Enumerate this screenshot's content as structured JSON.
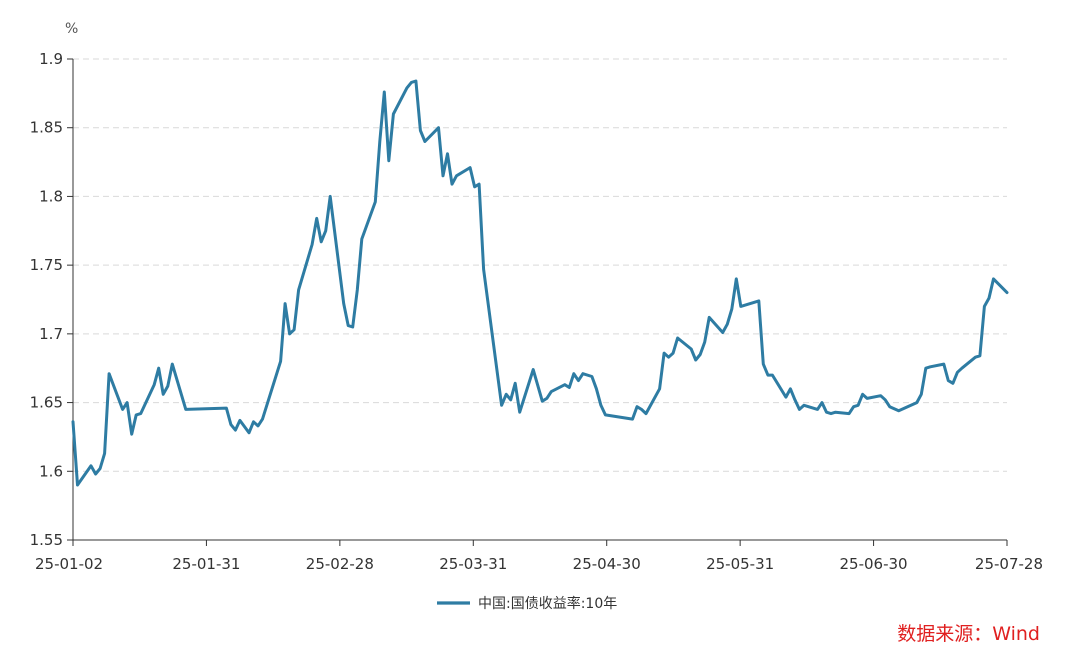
{
  "chart_data": {
    "type": "line",
    "unit": "%",
    "ylim": [
      1.55,
      1.9
    ],
    "y_ticks": [
      "1.55",
      "1.6",
      "1.65",
      "1.7",
      "1.75",
      "1.8",
      "1.85",
      "1.9"
    ],
    "x_tick_labels": [
      "25-01-02",
      "25-01-31",
      "25-02-28",
      "25-03-31",
      "25-04-30",
      "25-05-31",
      "25-06-30",
      "25-07-28"
    ],
    "grid": true,
    "legend_position": "bottom",
    "series": [
      {
        "name": "中国:国债收益率:10年",
        "color": "#2e7ca3",
        "points": [
          [
            "2025-01-02",
            1.636
          ],
          [
            "2025-01-03",
            1.59
          ],
          [
            "2025-01-06",
            1.604
          ],
          [
            "2025-01-07",
            1.598
          ],
          [
            "2025-01-08",
            1.602
          ],
          [
            "2025-01-09",
            1.613
          ],
          [
            "2025-01-10",
            1.671
          ],
          [
            "2025-01-13",
            1.645
          ],
          [
            "2025-01-14",
            1.65
          ],
          [
            "2025-01-15",
            1.627
          ],
          [
            "2025-01-16",
            1.641
          ],
          [
            "2025-01-17",
            1.642
          ],
          [
            "2025-01-20",
            1.663
          ],
          [
            "2025-01-21",
            1.675
          ],
          [
            "2025-01-22",
            1.656
          ],
          [
            "2025-01-23",
            1.662
          ],
          [
            "2025-01-24",
            1.678
          ],
          [
            "2025-01-26",
            1.656
          ],
          [
            "2025-01-27",
            1.645
          ],
          [
            "2025-02-05",
            1.646
          ],
          [
            "2025-02-06",
            1.634
          ],
          [
            "2025-02-07",
            1.63
          ],
          [
            "2025-02-08",
            1.637
          ],
          [
            "2025-02-10",
            1.628
          ],
          [
            "2025-02-11",
            1.636
          ],
          [
            "2025-02-12",
            1.633
          ],
          [
            "2025-02-13",
            1.638
          ],
          [
            "2025-02-17",
            1.68
          ],
          [
            "2025-02-18",
            1.722
          ],
          [
            "2025-02-19",
            1.7
          ],
          [
            "2025-02-20",
            1.703
          ],
          [
            "2025-02-21",
            1.732
          ],
          [
            "2025-02-24",
            1.765
          ],
          [
            "2025-02-25",
            1.784
          ],
          [
            "2025-02-26",
            1.767
          ],
          [
            "2025-02-27",
            1.775
          ],
          [
            "2025-02-28",
            1.8
          ],
          [
            "2025-03-03",
            1.722
          ],
          [
            "2025-03-04",
            1.706
          ],
          [
            "2025-03-05",
            1.705
          ],
          [
            "2025-03-06",
            1.732
          ],
          [
            "2025-03-07",
            1.769
          ],
          [
            "2025-03-10",
            1.796
          ],
          [
            "2025-03-11",
            1.84
          ],
          [
            "2025-03-12",
            1.876
          ],
          [
            "2025-03-13",
            1.826
          ],
          [
            "2025-03-14",
            1.86
          ],
          [
            "2025-03-17",
            1.879
          ],
          [
            "2025-03-18",
            1.883
          ],
          [
            "2025-03-19",
            1.884
          ],
          [
            "2025-03-20",
            1.848
          ],
          [
            "2025-03-21",
            1.84
          ],
          [
            "2025-03-24",
            1.85
          ],
          [
            "2025-03-25",
            1.815
          ],
          [
            "2025-03-26",
            1.831
          ],
          [
            "2025-03-27",
            1.809
          ],
          [
            "2025-03-28",
            1.815
          ],
          [
            "2025-03-31",
            1.821
          ],
          [
            "2025-04-01",
            1.807
          ],
          [
            "2025-04-02",
            1.809
          ],
          [
            "2025-04-03",
            1.747
          ],
          [
            "2025-04-07",
            1.648
          ],
          [
            "2025-04-08",
            1.656
          ],
          [
            "2025-04-09",
            1.652
          ],
          [
            "2025-04-10",
            1.664
          ],
          [
            "2025-04-11",
            1.643
          ],
          [
            "2025-04-14",
            1.674
          ],
          [
            "2025-04-16",
            1.651
          ],
          [
            "2025-04-17",
            1.653
          ],
          [
            "2025-04-18",
            1.658
          ],
          [
            "2025-04-21",
            1.663
          ],
          [
            "2025-04-22",
            1.661
          ],
          [
            "2025-04-23",
            1.671
          ],
          [
            "2025-04-24",
            1.666
          ],
          [
            "2025-04-25",
            1.671
          ],
          [
            "2025-04-27",
            1.669
          ],
          [
            "2025-04-28",
            1.66
          ],
          [
            "2025-04-29",
            1.648
          ],
          [
            "2025-04-30",
            1.641
          ],
          [
            "2025-05-06",
            1.638
          ],
          [
            "2025-05-07",
            1.647
          ],
          [
            "2025-05-08",
            1.645
          ],
          [
            "2025-05-09",
            1.642
          ],
          [
            "2025-05-12",
            1.66
          ],
          [
            "2025-05-13",
            1.686
          ],
          [
            "2025-05-14",
            1.683
          ],
          [
            "2025-05-15",
            1.686
          ],
          [
            "2025-05-16",
            1.697
          ],
          [
            "2025-05-19",
            1.689
          ],
          [
            "2025-05-20",
            1.681
          ],
          [
            "2025-05-21",
            1.685
          ],
          [
            "2025-05-22",
            1.694
          ],
          [
            "2025-05-23",
            1.712
          ],
          [
            "2025-05-26",
            1.701
          ],
          [
            "2025-05-27",
            1.707
          ],
          [
            "2025-05-28",
            1.718
          ],
          [
            "2025-05-29",
            1.74
          ],
          [
            "2025-05-30",
            1.72
          ],
          [
            "2025-06-03",
            1.724
          ],
          [
            "2025-06-04",
            1.678
          ],
          [
            "2025-06-05",
            1.67
          ],
          [
            "2025-06-06",
            1.67
          ],
          [
            "2025-06-09",
            1.654
          ],
          [
            "2025-06-10",
            1.66
          ],
          [
            "2025-06-11",
            1.652
          ],
          [
            "2025-06-12",
            1.645
          ],
          [
            "2025-06-13",
            1.648
          ],
          [
            "2025-06-16",
            1.645
          ],
          [
            "2025-06-17",
            1.65
          ],
          [
            "2025-06-18",
            1.643
          ],
          [
            "2025-06-19",
            1.642
          ],
          [
            "2025-06-20",
            1.643
          ],
          [
            "2025-06-23",
            1.642
          ],
          [
            "2025-06-24",
            1.647
          ],
          [
            "2025-06-25",
            1.648
          ],
          [
            "2025-06-26",
            1.656
          ],
          [
            "2025-06-27",
            1.653
          ],
          [
            "2025-06-30",
            1.655
          ],
          [
            "2025-07-01",
            1.652
          ],
          [
            "2025-07-02",
            1.647
          ],
          [
            "2025-07-04",
            1.644
          ],
          [
            "2025-07-08",
            1.65
          ],
          [
            "2025-07-09",
            1.656
          ],
          [
            "2025-07-10",
            1.675
          ],
          [
            "2025-07-11",
            1.676
          ],
          [
            "2025-07-14",
            1.678
          ],
          [
            "2025-07-15",
            1.666
          ],
          [
            "2025-07-16",
            1.664
          ],
          [
            "2025-07-17",
            1.672
          ],
          [
            "2025-07-18",
            1.675
          ],
          [
            "2025-07-21",
            1.683
          ],
          [
            "2025-07-22",
            1.684
          ],
          [
            "2025-07-23",
            1.72
          ],
          [
            "2025-07-24",
            1.726
          ],
          [
            "2025-07-25",
            1.74
          ],
          [
            "2025-07-28",
            1.73
          ]
        ]
      }
    ]
  },
  "source_text": "数据来源：Wind"
}
